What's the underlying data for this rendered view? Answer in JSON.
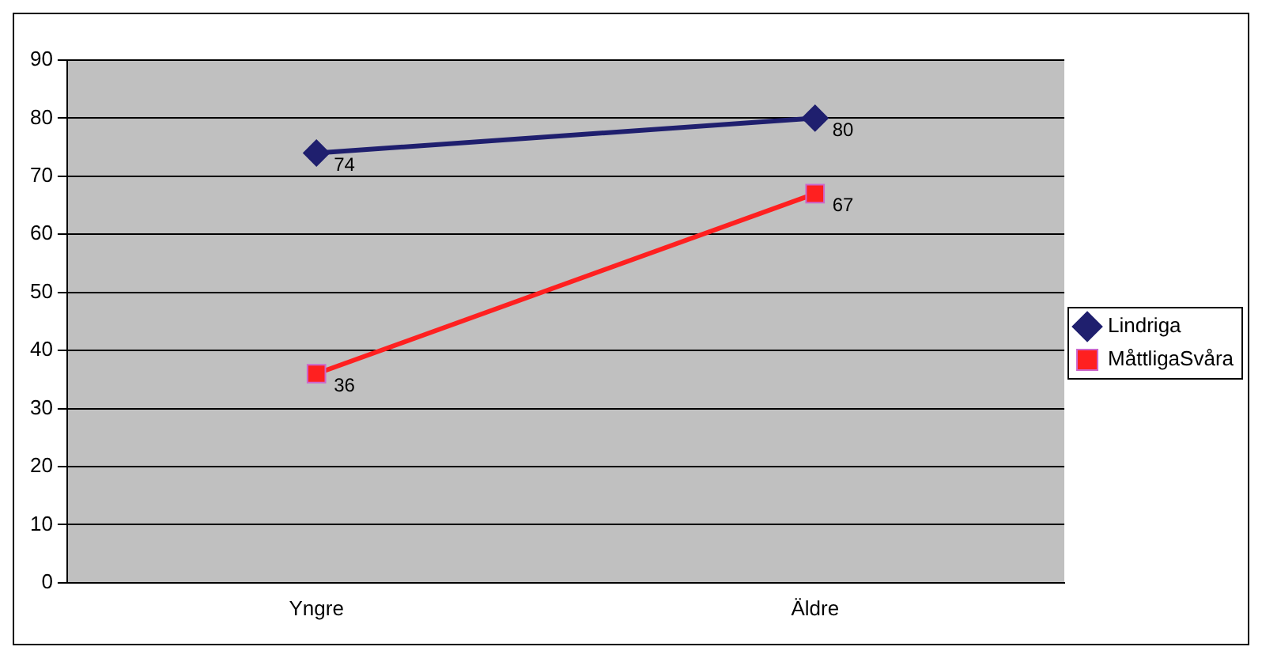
{
  "chart_data": {
    "type": "line",
    "categories": [
      "Yngre",
      "Äldre"
    ],
    "series": [
      {
        "name": "Lindriga",
        "color": "#1f1f6e",
        "marker": "diamond",
        "values": [
          74,
          80
        ]
      },
      {
        "name": "MåttligaSvåra",
        "color": "#ff2020",
        "marker": "square",
        "values": [
          36,
          67
        ]
      }
    ],
    "ylim": [
      0,
      90
    ],
    "yticks": [
      0,
      10,
      20,
      30,
      40,
      50,
      60,
      70,
      80,
      90
    ],
    "grid": "y",
    "legend": "right",
    "data_labels": true
  }
}
